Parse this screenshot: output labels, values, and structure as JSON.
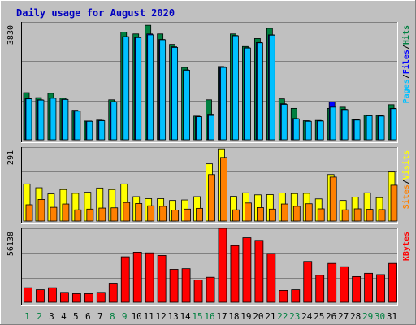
{
  "title": "Daily usage for August 2020",
  "colors": {
    "background": "#c0c0c0",
    "title": "#0000c0",
    "grid": "#808080",
    "hits": "#008040",
    "files": "#0000ff",
    "pages": "#00c0ff",
    "visits": "#ffff00",
    "sites": "#ff8000",
    "kbytes": "#ff0000",
    "weekday_label": "#000000",
    "weekend_label": "#008040"
  },
  "chart_data": [
    {
      "type": "bar",
      "name": "hits-files-pages",
      "y_max_label": "3830",
      "ylim": [
        0,
        3830
      ],
      "legend": [
        "Pages",
        "/",
        "Files",
        "/",
        "Hits"
      ],
      "series": [
        {
          "name": "Hits",
          "values": [
            1530,
            1370,
            1510,
            1360,
            960,
            610,
            640,
            1300,
            3500,
            3440,
            3720,
            3440,
            3100,
            2350,
            770,
            1300,
            2380,
            3440,
            3030,
            3290,
            3620,
            1330,
            1020,
            620,
            630,
            1020,
            1060,
            670,
            800,
            790,
            1140
          ]
        },
        {
          "name": "Files",
          "values": [
            1340,
            1300,
            1360,
            1320,
            940,
            610,
            630,
            1240,
            3350,
            3320,
            3440,
            3260,
            3020,
            2270,
            760,
            830,
            2370,
            3390,
            2990,
            3160,
            3410,
            1170,
            690,
            610,
            620,
            1230,
            990,
            650,
            790,
            780,
            1020
          ]
        },
        {
          "name": "Pages",
          "values": [
            1330,
            1290,
            1350,
            1310,
            930,
            600,
            620,
            1230,
            3350,
            3320,
            3410,
            3250,
            3000,
            2260,
            750,
            790,
            2350,
            3380,
            2980,
            3150,
            3400,
            1150,
            680,
            600,
            610,
            1060,
            980,
            640,
            780,
            770,
            1010
          ]
        }
      ],
      "categories": [
        "1",
        "2",
        "3",
        "4",
        "5",
        "6",
        "7",
        "8",
        "9",
        "10",
        "11",
        "12",
        "13",
        "14",
        "15",
        "16",
        "17",
        "18",
        "19",
        "20",
        "21",
        "22",
        "23",
        "24",
        "25",
        "26",
        "27",
        "28",
        "29",
        "30",
        "31"
      ]
    },
    {
      "type": "bar",
      "name": "visits-sites",
      "y_max_label": "291",
      "ylim": [
        0,
        291
      ],
      "legend": [
        "Sites",
        "/",
        "Visits"
      ],
      "series": [
        {
          "name": "Visits",
          "values": [
            146,
            131,
            107,
            124,
            109,
            113,
            130,
            124,
            146,
            96,
            88,
            88,
            81,
            83,
            96,
            225,
            284,
            97,
            111,
            103,
            104,
            110,
            108,
            109,
            87,
            183,
            81,
            94,
            111,
            92,
            193
          ]
        },
        {
          "name": "Sites",
          "values": [
            64,
            85,
            54,
            67,
            44,
            47,
            51,
            52,
            73,
            69,
            60,
            58,
            43,
            47,
            50,
            183,
            250,
            44,
            71,
            53,
            47,
            67,
            58,
            68,
            48,
            173,
            44,
            48,
            46,
            45,
            141
          ]
        }
      ],
      "categories": [
        "1",
        "2",
        "3",
        "4",
        "5",
        "6",
        "7",
        "8",
        "9",
        "10",
        "11",
        "12",
        "13",
        "14",
        "15",
        "16",
        "17",
        "18",
        "19",
        "20",
        "21",
        "22",
        "23",
        "24",
        "25",
        "26",
        "27",
        "28",
        "29",
        "30",
        "31"
      ]
    },
    {
      "type": "bar",
      "name": "kbytes",
      "y_max_label": "56138",
      "ylim": [
        0,
        56138
      ],
      "legend": [
        "KBytes"
      ],
      "series": [
        {
          "name": "KBytes",
          "values": [
            11000,
            9500,
            11000,
            7500,
            6500,
            6500,
            7500,
            14500,
            34500,
            38000,
            37500,
            35500,
            25000,
            25500,
            17000,
            19000,
            56138,
            43000,
            49000,
            47000,
            37000,
            9000,
            9500,
            31000,
            20500,
            29500,
            27000,
            19500,
            22000,
            21000,
            29500
          ]
        }
      ],
      "categories": [
        "1",
        "2",
        "3",
        "4",
        "5",
        "6",
        "7",
        "8",
        "9",
        "10",
        "11",
        "12",
        "13",
        "14",
        "15",
        "16",
        "17",
        "18",
        "19",
        "20",
        "21",
        "22",
        "23",
        "24",
        "25",
        "26",
        "27",
        "28",
        "29",
        "30",
        "31"
      ]
    }
  ],
  "x_axis": {
    "days": [
      "1",
      "2",
      "3",
      "4",
      "5",
      "6",
      "7",
      "8",
      "9",
      "10",
      "11",
      "12",
      "13",
      "14",
      "15",
      "16",
      "17",
      "18",
      "19",
      "20",
      "21",
      "22",
      "23",
      "24",
      "25",
      "26",
      "27",
      "28",
      "29",
      "30",
      "31"
    ],
    "weekend_days": [
      "1",
      "2",
      "8",
      "9",
      "15",
      "16",
      "22",
      "23",
      "29",
      "30"
    ]
  }
}
